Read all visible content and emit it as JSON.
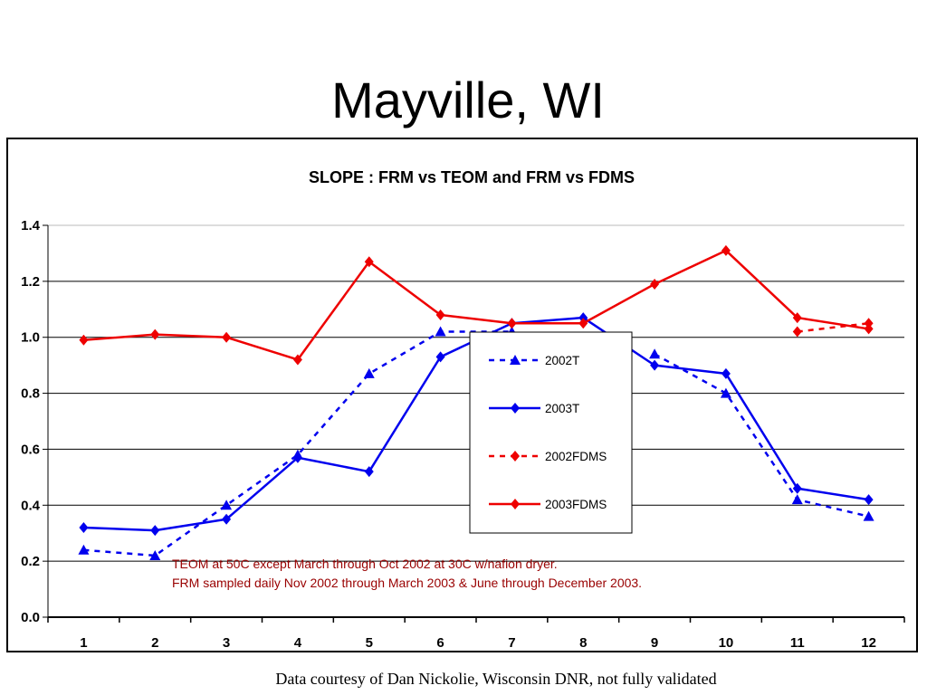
{
  "slide": {
    "title": "Mayville, WI",
    "footer": "Data courtesy of  Dan Nickolie, Wisconsin DNR, not fully validated"
  },
  "chart_data": {
    "type": "line",
    "title": "SLOPE :  FRM vs TEOM and FRM vs FDMS",
    "xlabel": "",
    "ylabel": "",
    "categories": [
      "1",
      "2",
      "3",
      "4",
      "5",
      "6",
      "7",
      "8",
      "9",
      "10",
      "11",
      "12"
    ],
    "ylim": [
      0,
      1.4
    ],
    "yticks": [
      "0.0",
      "0.2",
      "0.4",
      "0.6",
      "0.8",
      "1.0",
      "1.2",
      "1.4"
    ],
    "grid": true,
    "legend_position": "center-right",
    "series": [
      {
        "name": "2002T",
        "color": "#0000ee",
        "dashed": true,
        "marker": "triangle",
        "values": [
          0.24,
          0.22,
          0.4,
          0.58,
          0.87,
          1.02,
          1.02,
          null,
          0.94,
          0.8,
          0.42,
          0.36
        ]
      },
      {
        "name": "2003T",
        "color": "#0000ee",
        "dashed": false,
        "marker": "diamond",
        "values": [
          0.32,
          0.31,
          0.35,
          0.57,
          0.52,
          0.93,
          1.05,
          1.07,
          0.9,
          0.87,
          0.46,
          0.42
        ]
      },
      {
        "name": "2002FDMS",
        "color": "#ee0000",
        "dashed": true,
        "marker": "diamond",
        "values": [
          null,
          null,
          null,
          null,
          null,
          null,
          null,
          null,
          null,
          null,
          1.02,
          1.05
        ]
      },
      {
        "name": "2003FDMS",
        "color": "#ee0000",
        "dashed": false,
        "marker": "diamond",
        "values": [
          0.99,
          1.01,
          1.0,
          0.92,
          1.27,
          1.08,
          1.05,
          1.05,
          1.19,
          1.31,
          1.07,
          1.03
        ]
      }
    ],
    "annotations": [
      "TEOM at 50C except March through Oct 2002 at 30C w/nafion dryer.",
      "FRM sampled daily Nov 2002 through March 2003 & June through December 2003."
    ],
    "annotation_color": "#990000"
  }
}
